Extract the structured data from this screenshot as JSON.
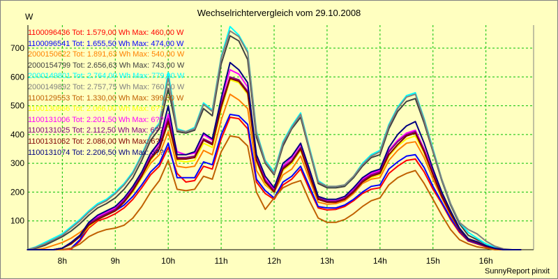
{
  "chart_data": {
    "type": "line",
    "title": "Wechselrichtervergleich vom 29.10.2008",
    "ylabel": "W",
    "xlabel": "",
    "footer": "SunnyReport pinxit",
    "ylim": [
      0,
      780
    ],
    "xlim": [
      7.35,
      16.9
    ],
    "yticks": [
      "100",
      "200",
      "300",
      "400",
      "500",
      "600",
      "700"
    ],
    "ytick_values": [
      100,
      200,
      300,
      400,
      500,
      600,
      700
    ],
    "xticks": [
      "8h",
      "9h",
      "10h",
      "11h",
      "12h",
      "13h",
      "14h",
      "15h",
      "16h"
    ],
    "xtick_values": [
      8,
      9,
      10,
      11,
      12,
      13,
      14,
      15,
      16
    ],
    "grid": true,
    "grid_color": "#00C000",
    "legend_position": "top-left",
    "x": [
      7.333,
      7.5,
      7.667,
      7.833,
      8.0,
      8.167,
      8.333,
      8.5,
      8.667,
      8.833,
      9.0,
      9.167,
      9.333,
      9.5,
      9.667,
      9.833,
      10.0,
      10.167,
      10.333,
      10.5,
      10.667,
      10.833,
      11.0,
      11.167,
      11.333,
      11.5,
      11.667,
      11.833,
      12.0,
      12.167,
      12.333,
      12.5,
      12.667,
      12.833,
      13.0,
      13.167,
      13.333,
      13.5,
      13.667,
      13.833,
      14.0,
      14.167,
      14.333,
      14.5,
      14.667,
      14.833,
      15.0,
      15.167,
      15.333,
      15.5,
      15.667,
      15.833,
      16.0,
      16.167,
      16.333,
      16.5,
      16.667
    ],
    "series": [
      {
        "name": "1100096436",
        "label": "1100096436 Tot: 1.579,00 Wh Max: 460,00 W",
        "color": "#FF0000",
        "values": [
          0,
          0,
          0,
          0,
          0,
          2,
          30,
          75,
          100,
          110,
          125,
          145,
          175,
          215,
          260,
          290,
          355,
          265,
          235,
          240,
          290,
          280,
          385,
          460,
          455,
          420,
          235,
          195,
          175,
          225,
          245,
          280,
          210,
          145,
          138,
          140,
          150,
          170,
          195,
          210,
          215,
          265,
          290,
          310,
          315,
          270,
          210,
          160,
          105,
          60,
          30,
          20,
          10,
          3,
          0,
          0,
          0
        ]
      },
      {
        "name": "1100096541",
        "label": "1100096541 Tot: 1.655,50 Wh Max: 474,00 W",
        "color": "#0000FF",
        "values": [
          0,
          0,
          0,
          0,
          0,
          5,
          35,
          85,
          110,
          120,
          135,
          155,
          185,
          225,
          270,
          300,
          370,
          250,
          250,
          250,
          305,
          295,
          400,
          470,
          465,
          435,
          245,
          205,
          180,
          235,
          255,
          290,
          220,
          150,
          145,
          145,
          155,
          175,
          200,
          220,
          225,
          280,
          305,
          325,
          330,
          285,
          220,
          165,
          110,
          65,
          32,
          22,
          12,
          4,
          0,
          0,
          0
        ]
      },
      {
        "name": "2000150622",
        "label": "2000150622 Tot: 1.891,63 Wh Max: 540,00 W",
        "color": "#FF8000",
        "values": [
          0,
          0,
          5,
          15,
          25,
          40,
          60,
          85,
          110,
          125,
          140,
          165,
          200,
          250,
          300,
          330,
          410,
          290,
          285,
          290,
          345,
          330,
          450,
          540,
          520,
          490,
          275,
          225,
          200,
          260,
          280,
          325,
          245,
          165,
          158,
          160,
          170,
          195,
          230,
          245,
          250,
          310,
          345,
          370,
          375,
          320,
          245,
          180,
          120,
          70,
          35,
          25,
          15,
          5,
          0,
          0,
          0
        ]
      },
      {
        "name": "2000154799",
        "label": "2000154799 Tot: 2.656,63 Wh Max: 743,00 W",
        "color": "#404040",
        "values": [
          0,
          5,
          15,
          30,
          45,
          65,
          90,
          120,
          145,
          160,
          180,
          210,
          250,
          310,
          380,
          420,
          560,
          410,
          405,
          415,
          490,
          465,
          645,
          743,
          725,
          660,
          390,
          300,
          260,
          360,
          420,
          460,
          345,
          230,
          215,
          215,
          220,
          250,
          290,
          320,
          330,
          420,
          480,
          515,
          525,
          440,
          340,
          240,
          155,
          90,
          50,
          35,
          20,
          8,
          0,
          0,
          0
        ]
      },
      {
        "name": "2000149801",
        "label": "2000149801 Tot: 2.764,00 Wh Max: 779,00 W",
        "color": "#00FFFF",
        "values": [
          0,
          10,
          25,
          40,
          55,
          80,
          105,
          135,
          160,
          175,
          200,
          230,
          270,
          330,
          400,
          440,
          615,
          420,
          410,
          425,
          510,
          485,
          670,
          775,
          745,
          690,
          410,
          310,
          270,
          375,
          430,
          475,
          355,
          240,
          220,
          220,
          225,
          255,
          300,
          330,
          345,
          435,
          495,
          535,
          545,
          455,
          350,
          245,
          160,
          95,
          60,
          40,
          20,
          8,
          0,
          0,
          0
        ]
      },
      {
        "name": "2000149892",
        "label": "2000149892 Tot: 2.757,75 Wh Max: 760,00 W",
        "color": "#808080",
        "values": [
          0,
          8,
          20,
          35,
          50,
          75,
          100,
          130,
          155,
          170,
          195,
          225,
          265,
          325,
          395,
          435,
          600,
          415,
          410,
          420,
          505,
          480,
          665,
          760,
          740,
          685,
          405,
          305,
          265,
          370,
          425,
          470,
          350,
          235,
          220,
          220,
          225,
          255,
          295,
          325,
          340,
          430,
          490,
          530,
          540,
          450,
          345,
          245,
          160,
          95,
          70,
          55,
          30,
          12,
          3,
          0,
          0
        ]
      },
      {
        "name": "1100129553",
        "label": "1100129553 Tot: 1.330,00 Wh Max: 399,50 W",
        "color": "#C06000",
        "values": [
          0,
          0,
          0,
          0,
          0,
          5,
          20,
          45,
          60,
          70,
          75,
          85,
          110,
          150,
          200,
          240,
          310,
          210,
          205,
          210,
          255,
          245,
          340,
          395,
          390,
          360,
          200,
          140,
          180,
          215,
          230,
          240,
          170,
          110,
          95,
          95,
          105,
          125,
          150,
          170,
          180,
          225,
          250,
          265,
          275,
          230,
          175,
          120,
          70,
          35,
          20,
          10,
          5,
          0,
          0,
          0,
          0
        ]
      },
      {
        "name": "1100130866",
        "label": "1100130866 Tot: 2.066,00 Wh Max: 6??",
        "color": "#FFFF00",
        "values": [
          0,
          0,
          0,
          0,
          5,
          20,
          45,
          80,
          105,
          120,
          135,
          165,
          200,
          250,
          310,
          350,
          440,
          310,
          305,
          310,
          370,
          355,
          485,
          590,
          580,
          540,
          305,
          230,
          200,
          275,
          300,
          345,
          260,
          175,
          165,
          165,
          175,
          200,
          235,
          250,
          260,
          325,
          360,
          385,
          395,
          335,
          260,
          190,
          125,
          70,
          35,
          25,
          12,
          4,
          0,
          0,
          0
        ]
      },
      {
        "name": "1100131006",
        "label": "1100131006 Tot: 2.201,50 Wh Max: 6??",
        "color": "#FF00FF",
        "values": [
          0,
          0,
          0,
          0,
          5,
          25,
          50,
          90,
          115,
          130,
          145,
          175,
          215,
          265,
          330,
          370,
          470,
          340,
          330,
          335,
          400,
          380,
          520,
          625,
          610,
          565,
          320,
          245,
          210,
          290,
          320,
          365,
          275,
          180,
          170,
          170,
          180,
          210,
          245,
          265,
          275,
          345,
          380,
          405,
          415,
          350,
          270,
          195,
          130,
          75,
          35,
          25,
          12,
          4,
          0,
          0,
          0
        ]
      },
      {
        "name": "1100131025",
        "label": "1100131025 Tot: 2.112,50 Wh Max: 6??",
        "color": "#800080",
        "values": [
          0,
          0,
          0,
          0,
          5,
          25,
          50,
          90,
          110,
          125,
          140,
          170,
          210,
          260,
          320,
          360,
          455,
          320,
          320,
          325,
          385,
          370,
          505,
          600,
          590,
          550,
          315,
          240,
          205,
          285,
          310,
          355,
          265,
          180,
          168,
          168,
          178,
          205,
          240,
          260,
          270,
          340,
          375,
          400,
          410,
          345,
          265,
          190,
          128,
          72,
          35,
          25,
          12,
          4,
          0,
          0,
          0
        ]
      },
      {
        "name": "1100131062",
        "label": "1100131062 Tot: 2.086,00 Wh Max: 6??",
        "color": "#800000",
        "values": [
          0,
          0,
          0,
          0,
          5,
          20,
          45,
          85,
          105,
          120,
          135,
          165,
          205,
          255,
          315,
          350,
          445,
          315,
          315,
          320,
          380,
          365,
          495,
          595,
          585,
          545,
          310,
          235,
          200,
          280,
          305,
          350,
          260,
          175,
          165,
          165,
          175,
          200,
          235,
          255,
          265,
          330,
          365,
          395,
          405,
          340,
          260,
          185,
          125,
          70,
          35,
          25,
          12,
          4,
          0,
          0,
          0
        ]
      },
      {
        "name": "1100131074",
        "label": "1100131074 Tot: 2.206,50 Wh Max: 6??",
        "color": "#000080",
        "values": [
          0,
          0,
          0,
          0,
          5,
          25,
          50,
          95,
          120,
          135,
          150,
          180,
          220,
          270,
          335,
          375,
          500,
          330,
          330,
          340,
          405,
          385,
          525,
          650,
          625,
          580,
          330,
          255,
          215,
          300,
          325,
          370,
          280,
          185,
          175,
          175,
          185,
          215,
          250,
          270,
          280,
          355,
          400,
          430,
          445,
          370,
          280,
          200,
          135,
          75,
          38,
          28,
          14,
          5,
          0,
          0,
          0
        ]
      }
    ]
  }
}
